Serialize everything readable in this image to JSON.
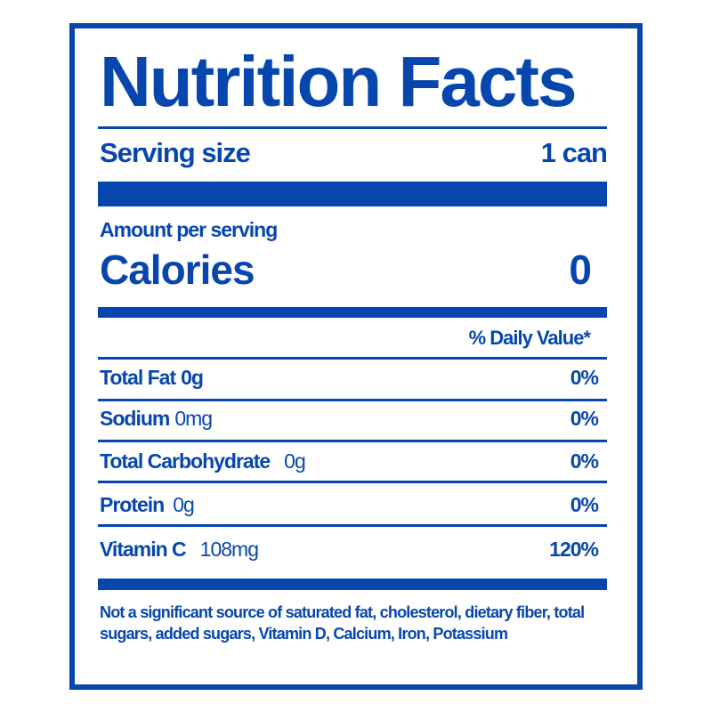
{
  "title": "Nutrition Facts",
  "serving": {
    "label": "Serving size",
    "value": "1 can"
  },
  "amount_per_serving": "Amount per serving",
  "calories": {
    "label": "Calories",
    "value": "0"
  },
  "daily_value_header": "% Daily Value*",
  "nutrients": [
    {
      "name": "Total Fat",
      "amount": "0g",
      "dv": "0%"
    },
    {
      "name": "Sodium",
      "amount": "0mg",
      "dv": "0%"
    },
    {
      "name": "Total Carbohydrate",
      "amount": "0g",
      "dv": "0%"
    },
    {
      "name": "Protein",
      "amount": "0g",
      "dv": "0%"
    },
    {
      "name": "Vitamin C",
      "amount": "108mg",
      "dv": "120%"
    }
  ],
  "footnote": "Not a significant source of saturated fat, cholesterol, dietary fiber, total sugars, added sugars, Vitamin D, Calcium, Iron, Potassium",
  "colors": {
    "ink": "#0747ad",
    "background": "#ffffff"
  }
}
